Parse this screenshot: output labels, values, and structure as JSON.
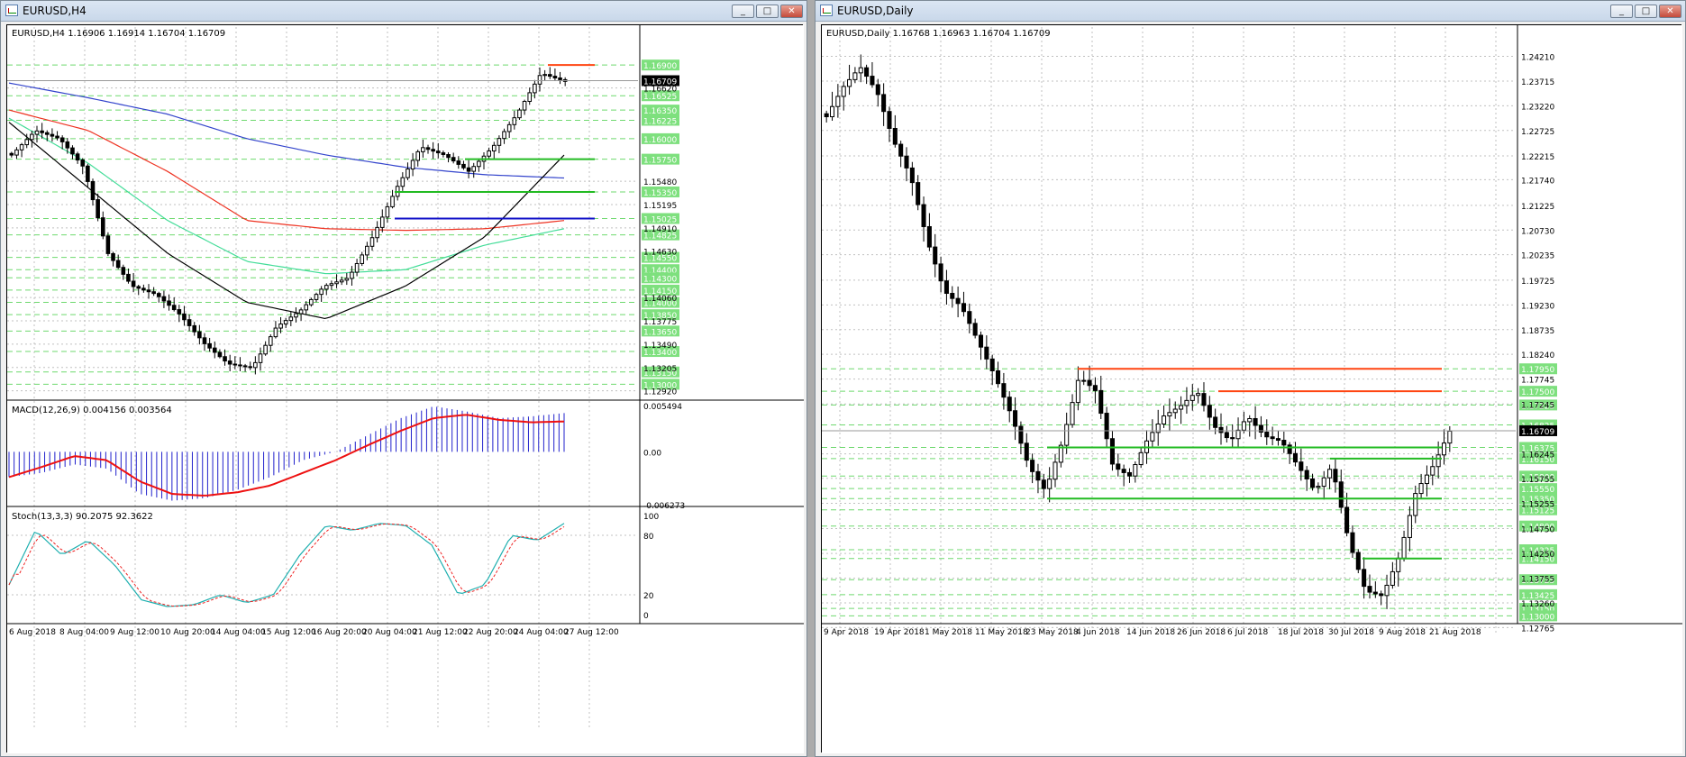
{
  "windows": [
    {
      "title": "EURUSD,H4",
      "header": "EURUSD,H4  1.16906 1.16914 1.16704 1.16709",
      "current_price": "1.16709",
      "main_ticks": [
        "1.16620",
        "1.15480",
        "1.15195",
        "1.14910",
        "1.14630",
        "1.14060",
        "1.13775",
        "1.13490",
        "1.13205",
        "1.12920"
      ],
      "level_labels": [
        "1.16900",
        "1.16525",
        "1.16350",
        "1.16225",
        "1.16000",
        "1.15750",
        "1.15350",
        "1.15025",
        "1.14825",
        "1.14550",
        "1.14400",
        "1.14300",
        "1.14150",
        "1.14000",
        "1.13850",
        "1.13650",
        "1.13400",
        "1.13150",
        "1.13000"
      ],
      "macd": {
        "header": "MACD(12,26,9) 0.004156 0.003564",
        "ticks": [
          "0.005494",
          "0.00",
          "-0.006273"
        ]
      },
      "stoch": {
        "header": "Stoch(13,3,3) 90.2075 92.3622",
        "ticks": [
          "100",
          "80",
          "20",
          "0"
        ]
      },
      "date_labels": [
        "6 Aug 2018",
        "8 Aug 04:00",
        "9 Aug 12:00",
        "10 Aug 20:00",
        "14 Aug 04:00",
        "15 Aug 12:00",
        "16 Aug 20:00",
        "20 Aug 04:00",
        "21 Aug 12:00",
        "22 Aug 20:00",
        "24 Aug 04:00",
        "27 Aug 12:00"
      ]
    },
    {
      "title": "EURUSD,Daily",
      "header": "EURUSD,Daily  1.16768 1.16963 1.16704 1.16709",
      "current_price": "1.16709",
      "main_ticks": [
        "1.24210",
        "1.23715",
        "1.23220",
        "1.22725",
        "1.22215",
        "1.21740",
        "1.21225",
        "1.20730",
        "1.20235",
        "1.19725",
        "1.19230",
        "1.18735",
        "1.18240",
        "1.17745",
        "1.17245",
        "1.16245",
        "1.15755",
        "1.15255",
        "1.14750",
        "1.14250",
        "1.13755",
        "1.13260",
        "1.12765"
      ],
      "level_labels": [
        "1.17950",
        "1.17500",
        "1.17225",
        "1.16825",
        "1.16375",
        "1.16150",
        "1.15800",
        "1.15550",
        "1.15350",
        "1.15125",
        "1.14800",
        "1.14325",
        "1.14150",
        "1.13725",
        "1.13425",
        "1.13150",
        "1.13000"
      ],
      "date_labels": [
        "9 Apr 2018",
        "19 Apr 2018",
        "1 May 2018",
        "11 May 2018",
        "23 May 2018",
        "4 Jun 2018",
        "14 Jun 2018",
        "26 Jun 2018",
        "6 Jul 2018",
        "18 Jul 2018",
        "30 Jul 2018",
        "9 Aug 2018",
        "21 Aug 2018"
      ]
    }
  ],
  "controls": {
    "minimize": "_",
    "maximize": "□",
    "close": "✕"
  },
  "colors": {
    "bg": "#ffffff",
    "grid": "#c0c0c0",
    "level_line": "#6fd96f",
    "level_label_bg": "#7ee07e",
    "support": "#22bb22",
    "resistance": "#ff4411",
    "blue_level": "#1010c8",
    "ma_blue": "#3344cc",
    "ma_red": "#ee3322",
    "ma_green": "#44dd99",
    "ma_black": "#000000",
    "macd_hist": "#2020cc",
    "macd_signal": "#ee1111",
    "stoch_main": "#20b0b0",
    "stoch_signal": "#ee2222"
  }
}
